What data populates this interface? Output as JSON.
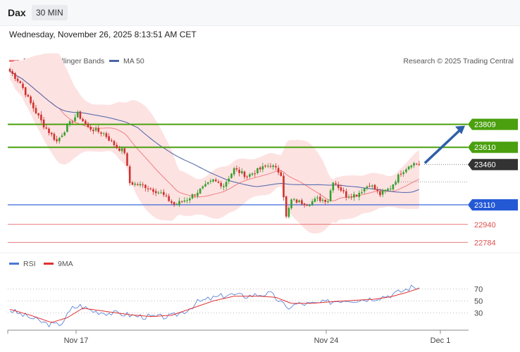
{
  "header": {
    "symbol": "Dax",
    "timeframe": "30 MIN",
    "datetime": "Wednesday, November 26, 2025 8:13:51 AM CET"
  },
  "legend": {
    "ma20_label": "MA 20 + Bollinger Bands",
    "ma50_label": "MA 50",
    "credit": "Research © 2025 Trading Central",
    "rsi_label": "RSI",
    "rsi_ma_label": "9MA"
  },
  "colors": {
    "candle_up": "#34a02c",
    "candle_down": "#d0312d",
    "bollinger_fill": "#fde2e2",
    "ma20": "#f08080",
    "ma50": "#4a64a8",
    "resistance": "#4aa00e",
    "support": "#2459d6",
    "support_secondary": "#e05050",
    "pivot": "#333333",
    "rsi_line": "#4a78d6",
    "rsi_ma": "#e03030"
  },
  "chart_data": [
    {
      "type": "candlestick",
      "title": "",
      "x_ticks": [
        "Nov 17",
        "Nov 24",
        "Dec 1"
      ],
      "key_levels": [
        {
          "value": 23809,
          "label": "23809",
          "kind": "resistance"
        },
        {
          "value": 23610,
          "label": "23610",
          "kind": "resistance"
        },
        {
          "value": 23460,
          "label": "23460",
          "kind": "pivot"
        },
        {
          "value": 23110,
          "label": "23110",
          "kind": "support"
        },
        {
          "value": 22940,
          "label": "22940",
          "kind": "support"
        },
        {
          "value": 22784,
          "label": "22784",
          "kind": "support"
        }
      ],
      "close_anchors": [
        [
          0,
          24270
        ],
        [
          4,
          24170
        ],
        [
          8,
          23990
        ],
        [
          13,
          23800
        ],
        [
          18,
          23660
        ],
        [
          22,
          23790
        ],
        [
          26,
          23900
        ],
        [
          30,
          23780
        ],
        [
          36,
          23730
        ],
        [
          41,
          23610
        ],
        [
          44,
          23570
        ],
        [
          46,
          23300
        ],
        [
          52,
          23270
        ],
        [
          58,
          23210
        ],
        [
          63,
          23110
        ],
        [
          68,
          23160
        ],
        [
          73,
          23240
        ],
        [
          78,
          23320
        ],
        [
          82,
          23280
        ],
        [
          86,
          23420
        ],
        [
          91,
          23360
        ],
        [
          96,
          23420
        ],
        [
          100,
          23460
        ],
        [
          104,
          23380
        ],
        [
          106,
          23000
        ],
        [
          108,
          23150
        ],
        [
          114,
          23120
        ],
        [
          118,
          23160
        ],
        [
          122,
          23150
        ],
        [
          124,
          23320
        ],
        [
          129,
          23190
        ],
        [
          133,
          23200
        ],
        [
          138,
          23290
        ],
        [
          142,
          23200
        ],
        [
          146,
          23260
        ],
        [
          150,
          23390
        ],
        [
          154,
          23470
        ],
        [
          157,
          23465
        ]
      ],
      "y_range": [
        22700,
        24400
      ],
      "arrow_target": 23809,
      "grid": false,
      "legend_placement": "top-left"
    },
    {
      "type": "line",
      "title": "RSI",
      "series": [
        {
          "name": "RSI"
        },
        {
          "name": "9MA"
        }
      ],
      "y_range": [
        0,
        100
      ],
      "y_ticks": [
        70,
        50,
        30
      ],
      "rsi_anchors": [
        [
          0,
          35
        ],
        [
          4,
          28
        ],
        [
          8,
          22
        ],
        [
          14,
          12
        ],
        [
          18,
          10
        ],
        [
          20,
          14
        ],
        [
          24,
          38
        ],
        [
          27,
          42
        ],
        [
          32,
          33
        ],
        [
          38,
          30
        ],
        [
          44,
          28
        ],
        [
          48,
          25
        ],
        [
          56,
          23
        ],
        [
          62,
          24
        ],
        [
          68,
          35
        ],
        [
          72,
          48
        ],
        [
          78,
          55
        ],
        [
          84,
          61
        ],
        [
          90,
          58
        ],
        [
          96,
          61
        ],
        [
          100,
          62
        ],
        [
          104,
          48
        ],
        [
          106,
          38
        ],
        [
          110,
          45
        ],
        [
          116,
          45
        ],
        [
          122,
          48
        ],
        [
          128,
          52
        ],
        [
          134,
          52
        ],
        [
          140,
          55
        ],
        [
          146,
          60
        ],
        [
          150,
          66
        ],
        [
          154,
          73
        ],
        [
          157,
          73
        ]
      ],
      "rsi_ma_anchors": [
        [
          0,
          36
        ],
        [
          8,
          26
        ],
        [
          16,
          14
        ],
        [
          22,
          22
        ],
        [
          28,
          38
        ],
        [
          36,
          33
        ],
        [
          46,
          27
        ],
        [
          54,
          24
        ],
        [
          62,
          26
        ],
        [
          70,
          38
        ],
        [
          78,
          50
        ],
        [
          86,
          58
        ],
        [
          96,
          58
        ],
        [
          102,
          56
        ],
        [
          108,
          46
        ],
        [
          116,
          46
        ],
        [
          124,
          49
        ],
        [
          132,
          51
        ],
        [
          140,
          53
        ],
        [
          146,
          57
        ],
        [
          152,
          64
        ],
        [
          157,
          71
        ]
      ]
    }
  ]
}
